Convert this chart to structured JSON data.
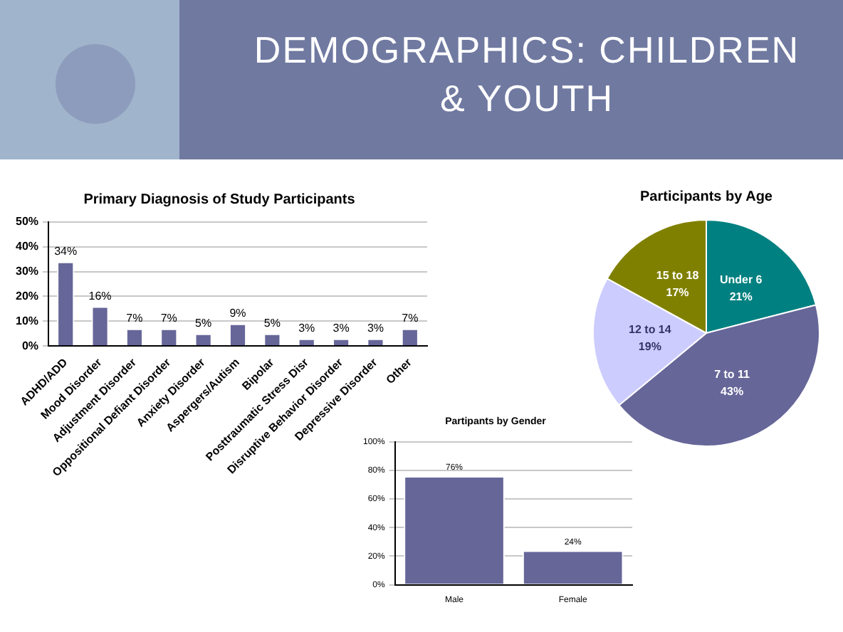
{
  "chart_data": [
    {
      "type": "other",
      "title": "DEMOGRAPHICS: CHILDREN & YOUTH"
    },
    {
      "type": "bar",
      "title": "Primary Diagnosis of Study Participants",
      "categories": [
        "ADHD/ADD",
        "Mood Disorder",
        "Adjustment Disorder",
        "Oppositional Defiant Disorder",
        "Anxiety Disorder",
        "Aspergers/Autism",
        "Bipolar",
        "Posttraumatic Stress Disr",
        "Disruptive Behavior Disorder",
        "Depressive Disorder",
        "Other"
      ],
      "values": [
        34,
        16,
        7,
        7,
        5,
        9,
        5,
        3,
        3,
        3,
        7
      ],
      "value_labels": [
        "34%",
        "16%",
        "7%",
        "7%",
        "5%",
        "9%",
        "5%",
        "3%",
        "3%",
        "3%",
        "7%"
      ],
      "color": "#666699",
      "ylim": [
        0,
        50
      ],
      "yticks": [
        {
          "value": 0,
          "label": "0%"
        },
        {
          "value": 10,
          "label": "10%"
        },
        {
          "value": 20,
          "label": "20%"
        },
        {
          "value": 30,
          "label": "30%"
        },
        {
          "value": 40,
          "label": "40%"
        },
        {
          "value": 50,
          "label": "50%"
        }
      ],
      "grid": "y",
      "legend": false
    },
    {
      "type": "pie",
      "title": "Participants by Age",
      "categories": [
        "Under 6",
        "7 to 11",
        "12 to 14",
        "15 to 18"
      ],
      "values": [
        21,
        43,
        19,
        17
      ],
      "value_labels": [
        "21%",
        "43%",
        "19%",
        "17%"
      ],
      "colors": [
        "#008080",
        "#666699",
        "#ccccff",
        "#808000"
      ],
      "legend": false
    },
    {
      "type": "bar",
      "title": "Partipants by Gender",
      "categories": [
        "Male",
        "Female"
      ],
      "values": [
        76,
        24
      ],
      "value_labels": [
        "76%",
        "24%"
      ],
      "color": "#666699",
      "ylim": [
        0,
        100
      ],
      "yticks": [
        {
          "value": 0,
          "label": "0%"
        },
        {
          "value": 20,
          "label": "20%"
        },
        {
          "value": 40,
          "label": "40%"
        },
        {
          "value": 60,
          "label": "60%"
        },
        {
          "value": 80,
          "label": "80%"
        },
        {
          "value": 100,
          "label": "100%"
        }
      ],
      "grid": "y",
      "legend": false
    }
  ]
}
